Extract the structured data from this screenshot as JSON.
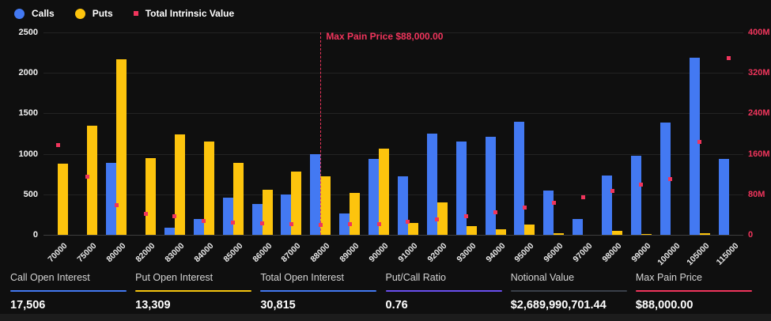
{
  "colors": {
    "calls": "#4379f2",
    "puts": "#fdc40d",
    "intrinsic": "#f0355c",
    "background": "#0f0f0f",
    "grid": "#232323",
    "putcall_accent": "#6a4ff0",
    "notional_accent": "#3a404a"
  },
  "legend": [
    {
      "label": "Calls",
      "marker": "circle",
      "color": "#4379f2"
    },
    {
      "label": "Puts",
      "marker": "circle",
      "color": "#fdc40d"
    },
    {
      "label": "Total Intrinsic Value",
      "marker": "square",
      "color": "#f0355c"
    }
  ],
  "chart_data": {
    "type": "bar",
    "categories": [
      "70000",
      "75000",
      "80000",
      "82000",
      "83000",
      "84000",
      "85000",
      "86000",
      "87000",
      "88000",
      "89000",
      "90000",
      "91000",
      "92000",
      "93000",
      "94000",
      "95000",
      "96000",
      "97000",
      "98000",
      "99000",
      "100000",
      "105000",
      "115000"
    ],
    "series": [
      {
        "name": "Calls",
        "type": "bar",
        "axis": "left",
        "color_key": "calls",
        "values": [
          0,
          0,
          890,
          0,
          90,
          200,
          455,
          385,
          500,
          1000,
          265,
          940,
          720,
          1250,
          1150,
          1215,
          1400,
          550,
          200,
          730,
          975,
          1390,
          2190,
          935
        ]
      },
      {
        "name": "Puts",
        "type": "bar",
        "axis": "left",
        "color_key": "puts",
        "values": [
          880,
          1350,
          2170,
          945,
          1245,
          1150,
          890,
          560,
          785,
          720,
          515,
          1060,
          150,
          400,
          110,
          70,
          125,
          15,
          0,
          45,
          10,
          0,
          15,
          0
        ]
      },
      {
        "name": "Total Intrinsic Value",
        "type": "scatter",
        "axis": "right",
        "color_key": "intrinsic",
        "values_millions": [
          178,
          115,
          59,
          42,
          36,
          28,
          25,
          22,
          21,
          19,
          21,
          21,
          26,
          30,
          37,
          44,
          54,
          63,
          75,
          87,
          100,
          110,
          183,
          350
        ]
      }
    ],
    "left_axis": {
      "ticks": [
        0,
        500,
        1000,
        1500,
        2000,
        2500
      ],
      "max": 2500
    },
    "right_axis": {
      "tick_labels": [
        "0",
        "80M",
        "160M",
        "240M",
        "320M",
        "400M"
      ],
      "max_millions": 400
    },
    "max_pain_line": {
      "category": "88000",
      "label": "Max Pain Price $88,000.00"
    },
    "grid": true,
    "legend_position": "top-left"
  },
  "stats": [
    {
      "label": "Call Open Interest",
      "value": "17,506",
      "accent": "#4379f2"
    },
    {
      "label": "Put Open Interest",
      "value": "13,309",
      "accent": "#f6c50f"
    },
    {
      "label": "Total Open Interest",
      "value": "30,815",
      "accent": "#4379f2"
    },
    {
      "label": "Put/Call Ratio",
      "value": "0.76",
      "accent": "#6a4ff0"
    },
    {
      "label": "Notional Value",
      "value": "$2,689,990,701.44",
      "accent": "#3a404a"
    },
    {
      "label": "Max Pain Price",
      "value": "$88,000.00",
      "accent": "#f0355c"
    }
  ]
}
